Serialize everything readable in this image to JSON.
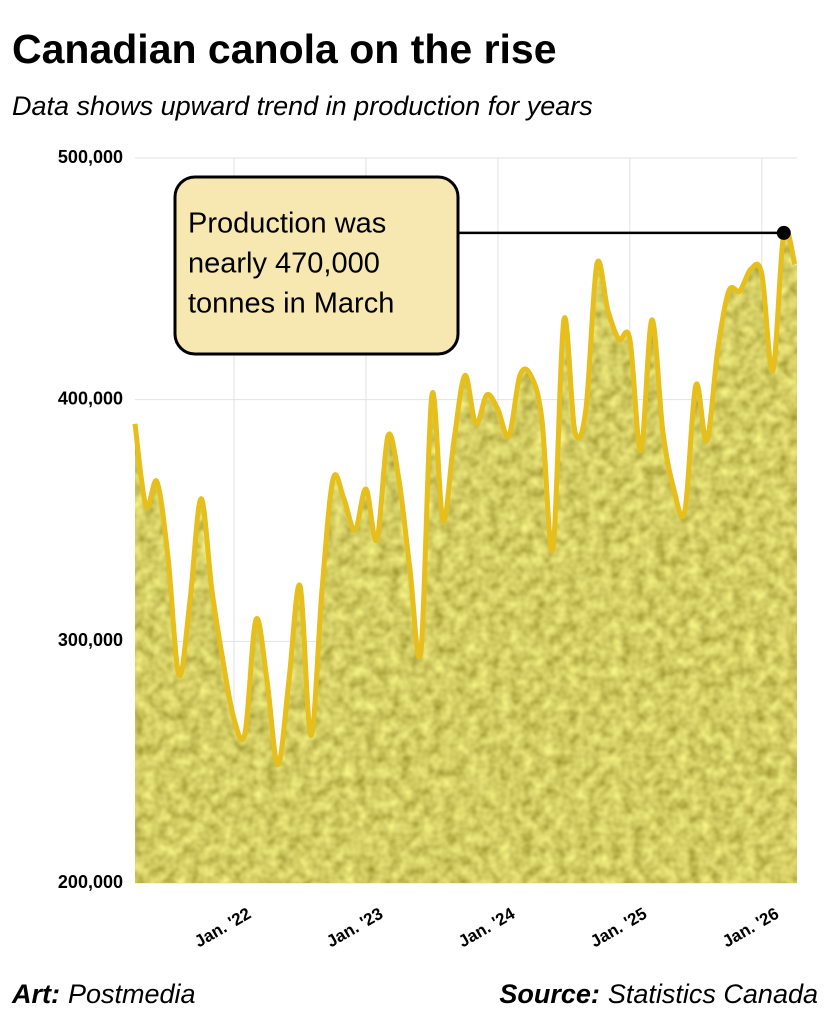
{
  "chart_data": {
    "type": "area",
    "title": "Canadian canola on the rise",
    "subtitle": "Data shows upward trend in production for years",
    "categories": [
      null,
      null,
      null,
      null,
      null,
      null,
      null,
      null,
      null,
      "Jan. '22",
      null,
      null,
      null,
      null,
      null,
      null,
      null,
      null,
      null,
      null,
      null,
      "Jan. '23",
      null,
      null,
      null,
      null,
      null,
      null,
      null,
      null,
      null,
      null,
      null,
      "Jan. '24",
      null,
      null,
      null,
      null,
      null,
      null,
      null,
      null,
      null,
      null,
      null,
      "Jan. '25",
      null,
      null,
      null,
      null,
      null,
      null,
      null,
      null,
      null,
      null,
      null,
      "Jan. '26",
      null,
      null,
      null
    ],
    "values": [
      390000,
      356000,
      366000,
      335000,
      286000,
      317000,
      359000,
      321000,
      292000,
      268000,
      262000,
      309000,
      284000,
      249000,
      284000,
      323000,
      261000,
      321000,
      367000,
      359000,
      346000,
      363000,
      342000,
      385000,
      367000,
      330000,
      296000,
      402000,
      350000,
      383000,
      410000,
      390000,
      402000,
      396000,
      385000,
      410000,
      410000,
      392000,
      338000,
      433000,
      387000,
      396000,
      456000,
      437000,
      425000,
      425000,
      379000,
      433000,
      387000,
      363000,
      354000,
      406000,
      383000,
      421000,
      445000,
      445000,
      454000,
      452000,
      412000,
      469000,
      456000
    ],
    "color": "#e6bf1c",
    "ylim": [
      200000,
      500000
    ],
    "yticks": [
      {
        "value": 200000,
        "label": "200,000"
      },
      {
        "value": 300000,
        "label": "300,000"
      },
      {
        "value": 400000,
        "label": "400,000"
      },
      {
        "value": 500000,
        "label": "500,000"
      }
    ],
    "grid": true,
    "annotation": {
      "lines": [
        "Production was",
        "nearly 470,000",
        "tonnes in March"
      ],
      "index": 59
    },
    "credit": {
      "label": "Art:",
      "text": "Postmedia"
    },
    "source": {
      "label": "Source:",
      "text": "Statistics Canada"
    }
  }
}
